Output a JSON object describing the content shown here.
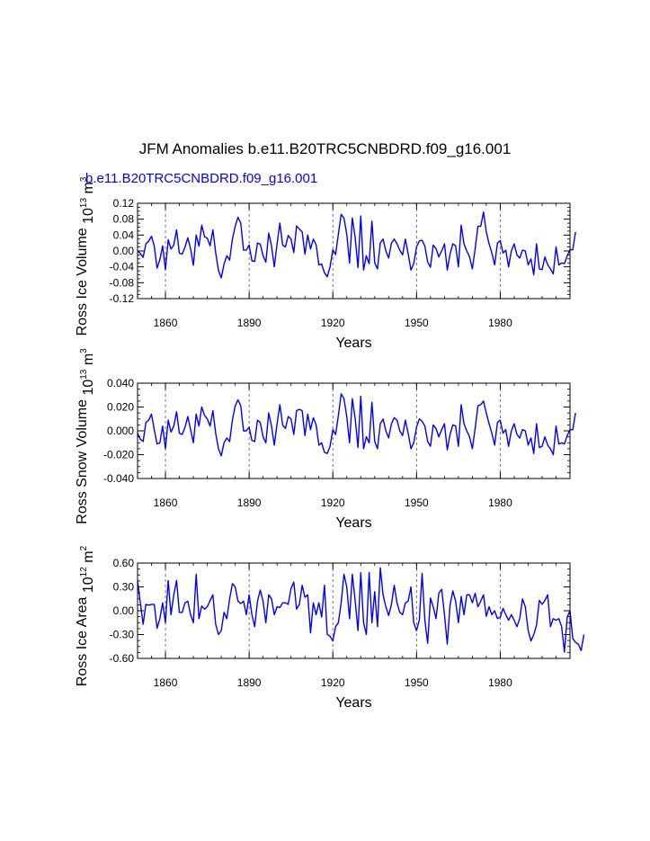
{
  "title": "JFM Anomalies b.e11.B20TRC5CNBDRD.f09_g16.001",
  "run_label": "b.e11.B20TRC5CNBDRD.f09_g16.001",
  "line_color": "#0000ff",
  "chart_data": [
    {
      "type": "line",
      "id": "ice_volume",
      "ylabel": "Ross Ice Volume",
      "ylabel_scale": "10",
      "ylabel_scale_exp": "13",
      "ylabel_unit": "m",
      "ylabel_unit_exp": "3",
      "xlabel": "Years",
      "xlim": [
        1850,
        2005
      ],
      "ylim": [
        -0.12,
        0.12
      ],
      "yticks": [
        "0.12",
        "0.08",
        "0.04",
        "0.00",
        "-0.04",
        "-0.08",
        "-0.12"
      ],
      "ytick_values": [
        0.12,
        0.08,
        0.04,
        0.0,
        -0.04,
        -0.08,
        -0.12
      ],
      "xticks": [
        "1860",
        "1890",
        "1920",
        "1950",
        "1980"
      ],
      "xtick_values": [
        1860,
        1890,
        1920,
        1950,
        1980
      ],
      "x_start": 1850,
      "values": [
        0.0,
        -0.006,
        -0.016,
        0.018,
        0.025,
        0.037,
        0.012,
        -0.043,
        -0.022,
        0.013,
        -0.047,
        0.028,
        0.005,
        0.015,
        0.053,
        -0.006,
        -0.008,
        0.01,
        0.033,
        0.005,
        -0.036,
        0.04,
        0.012,
        0.065,
        0.036,
        0.032,
        0.013,
        0.053,
        -0.004,
        -0.049,
        -0.068,
        -0.033,
        -0.012,
        -0.023,
        0.03,
        0.062,
        0.085,
        0.07,
        0.002,
        0.002,
        0.015,
        -0.025,
        -0.026,
        0.02,
        0.017,
        -0.012,
        -0.028,
        0.045,
        0.013,
        -0.04,
        0.018,
        0.07,
        0.015,
        0.01,
        0.039,
        0.03,
        -0.004,
        0.063,
        0.055,
        0.048,
        -0.008,
        0.04,
        0.005,
        0.03,
        0.016,
        -0.035,
        -0.033,
        -0.055,
        -0.065,
        -0.04,
        0.003,
        -0.009,
        0.043,
        0.092,
        0.083,
        0.042,
        -0.03,
        0.083,
        0.033,
        -0.042,
        0.088,
        -0.048,
        -0.012,
        -0.032,
        0.075,
        -0.03,
        -0.045,
        0.02,
        0.03,
        0.0,
        -0.018,
        0.02,
        0.03,
        0.018,
        0.002,
        -0.01,
        0.03,
        -0.007,
        -0.048,
        -0.032,
        0.01,
        0.025,
        0.027,
        0.012,
        -0.028,
        -0.041,
        0.015,
        0.006,
        -0.015,
        0.0,
        0.018,
        -0.048,
        -0.008,
        0.018,
        0.013,
        -0.04,
        0.065,
        0.018,
        0.0,
        -0.015,
        -0.045,
        0.005,
        0.062,
        0.062,
        0.098,
        0.048,
        0.018,
        -0.005,
        -0.035,
        0.02,
        0.026,
        -0.005,
        0.002,
        -0.04,
        0.0,
        0.018,
        -0.01,
        -0.018,
        0.002,
        0.0,
        -0.035,
        -0.02,
        -0.06,
        0.018,
        -0.045,
        -0.047,
        -0.015,
        -0.035,
        -0.045,
        -0.058,
        0.01,
        -0.035,
        -0.03,
        -0.032,
        -0.012,
        0.003,
        0.003,
        0.048
      ]
    },
    {
      "type": "line",
      "id": "snow_volume",
      "ylabel": "Ross Snow Volume",
      "ylabel_scale": "10",
      "ylabel_scale_exp": "13",
      "ylabel_unit": "m",
      "ylabel_unit_exp": "3",
      "xlabel": "Years",
      "xlim": [
        1850,
        2005
      ],
      "ylim": [
        -0.04,
        0.04
      ],
      "yticks": [
        "0.040",
        "0.020",
        "0.000",
        "-0.020",
        "-0.040"
      ],
      "ytick_values": [
        0.04,
        0.02,
        0.0,
        -0.02,
        -0.04
      ],
      "xticks": [
        "1860",
        "1890",
        "1920",
        "1950",
        "1980"
      ],
      "xtick_values": [
        1860,
        1890,
        1920,
        1950,
        1980
      ],
      "x_start": 1850,
      "values": [
        -0.002,
        -0.007,
        -0.009,
        0.007,
        0.009,
        0.014,
        0.001,
        -0.011,
        -0.01,
        0.004,
        -0.015,
        0.009,
        -0.001,
        0.004,
        0.016,
        -0.002,
        -0.003,
        0.003,
        0.012,
        0.001,
        -0.01,
        0.014,
        0.004,
        0.02,
        0.013,
        0.01,
        0.004,
        0.017,
        -0.002,
        -0.015,
        -0.021,
        -0.01,
        -0.006,
        -0.009,
        0.009,
        0.021,
        0.026,
        0.021,
        0.0,
        0.0,
        0.003,
        -0.008,
        -0.009,
        0.009,
        0.007,
        -0.005,
        -0.01,
        0.015,
        0.004,
        -0.012,
        0.006,
        0.022,
        0.005,
        0.002,
        0.012,
        0.01,
        -0.003,
        0.017,
        0.018,
        0.017,
        -0.004,
        0.014,
        0.001,
        0.011,
        0.005,
        -0.012,
        -0.01,
        -0.018,
        -0.019,
        -0.013,
        0.001,
        -0.003,
        0.013,
        0.031,
        0.027,
        0.012,
        -0.01,
        0.027,
        0.01,
        -0.014,
        0.029,
        -0.015,
        -0.005,
        -0.01,
        0.024,
        -0.009,
        -0.015,
        0.006,
        0.01,
        0.0,
        -0.006,
        0.006,
        0.011,
        0.009,
        0.0,
        -0.004,
        0.009,
        -0.002,
        -0.015,
        -0.01,
        0.003,
        0.01,
        0.008,
        0.004,
        -0.009,
        -0.013,
        0.005,
        0.002,
        -0.005,
        0.001,
        0.006,
        -0.016,
        -0.003,
        0.005,
        0.004,
        -0.013,
        0.022,
        0.006,
        0.0,
        -0.005,
        -0.015,
        0.002,
        0.021,
        0.022,
        0.025,
        0.015,
        0.006,
        -0.002,
        -0.012,
        0.007,
        0.009,
        -0.002,
        0.001,
        -0.013,
        0.0,
        0.006,
        -0.003,
        -0.006,
        0.001,
        0.0,
        -0.012,
        -0.006,
        -0.019,
        0.006,
        -0.014,
        -0.013,
        -0.005,
        -0.012,
        -0.015,
        -0.02,
        0.004,
        -0.011,
        -0.01,
        -0.011,
        -0.004,
        0.001,
        0.001,
        0.015
      ]
    },
    {
      "type": "line",
      "id": "ice_area",
      "ylabel": "Ross Ice Area",
      "ylabel_scale": "10",
      "ylabel_scale_exp": "12",
      "ylabel_unit": "m",
      "ylabel_unit_exp": "2",
      "xlabel": "Years",
      "xlim": [
        1850,
        2005
      ],
      "ylim": [
        -0.6,
        0.6
      ],
      "yticks": [
        "0.60",
        "0.30",
        "0.00",
        "-0.30",
        "-0.60"
      ],
      "ytick_values": [
        0.6,
        0.3,
        0.0,
        -0.3,
        -0.6
      ],
      "xticks": [
        "1860",
        "1890",
        "1920",
        "1950",
        "1980"
      ],
      "xtick_values": [
        1860,
        1890,
        1920,
        1950,
        1980
      ],
      "x_start": 1850,
      "values": [
        0.38,
        0.1,
        -0.17,
        0.08,
        0.07,
        0.08,
        0.08,
        -0.22,
        -0.1,
        0.1,
        -0.15,
        0.38,
        -0.05,
        0.2,
        0.38,
        -0.02,
        -0.02,
        0.1,
        0.12,
        -0.05,
        -0.15,
        0.46,
        -0.1,
        0.06,
        0.02,
        0.05,
        0.13,
        0.2,
        -0.17,
        -0.3,
        -0.25,
        -0.02,
        -0.1,
        0.15,
        0.34,
        0.3,
        0.12,
        0.09,
        0.12,
        -0.05,
        0.2,
        -0.05,
        -0.2,
        0.12,
        0.26,
        0.12,
        -0.15,
        0.2,
        0.15,
        -0.05,
        0.05,
        0.04,
        0.1,
        0.1,
        0.08,
        0.28,
        0.36,
        0.02,
        0.08,
        0.32,
        0.17,
        0.2,
        -0.28,
        0.1,
        -0.05,
        0.1,
        -0.08,
        0.32,
        -0.3,
        -0.32,
        -0.38,
        -0.2,
        -0.15,
        0.1,
        0.46,
        0.3,
        -0.1,
        0.46,
        0.12,
        -0.25,
        0.48,
        -0.15,
        -0.3,
        0.48,
        -0.15,
        0.24,
        -0.2,
        0.54,
        0.2,
        0.05,
        -0.06,
        0.08,
        0.32,
        0.1,
        -0.02,
        -0.05,
        0.1,
        0.12,
        0.3,
        -0.15,
        -0.25,
        -0.12,
        0.47,
        -0.12,
        -0.41,
        0.16,
        0.05,
        -0.1,
        0.22,
        0.27,
        -0.05,
        -0.42,
        0.07,
        0.25,
        0.12,
        -0.15,
        0.18,
        -0.05,
        0.2,
        0.2,
        0.1,
        0.22,
        0.05,
        0.12,
        0.2,
        -0.07,
        0.05,
        -0.05,
        0.0,
        -0.1,
        -0.08,
        0.03,
        -0.05,
        -0.12,
        -0.05,
        -0.12,
        -0.2,
        -0.1,
        0.15,
        0.05,
        -0.25,
        -0.38,
        -0.3,
        -0.18,
        0.13,
        0.08,
        0.13,
        0.2,
        -0.2,
        -0.1,
        -0.12,
        -0.1,
        -0.2,
        -0.52,
        -0.08,
        0.0,
        -0.35,
        -0.4,
        -0.42,
        -0.5,
        -0.3
      ]
    }
  ]
}
